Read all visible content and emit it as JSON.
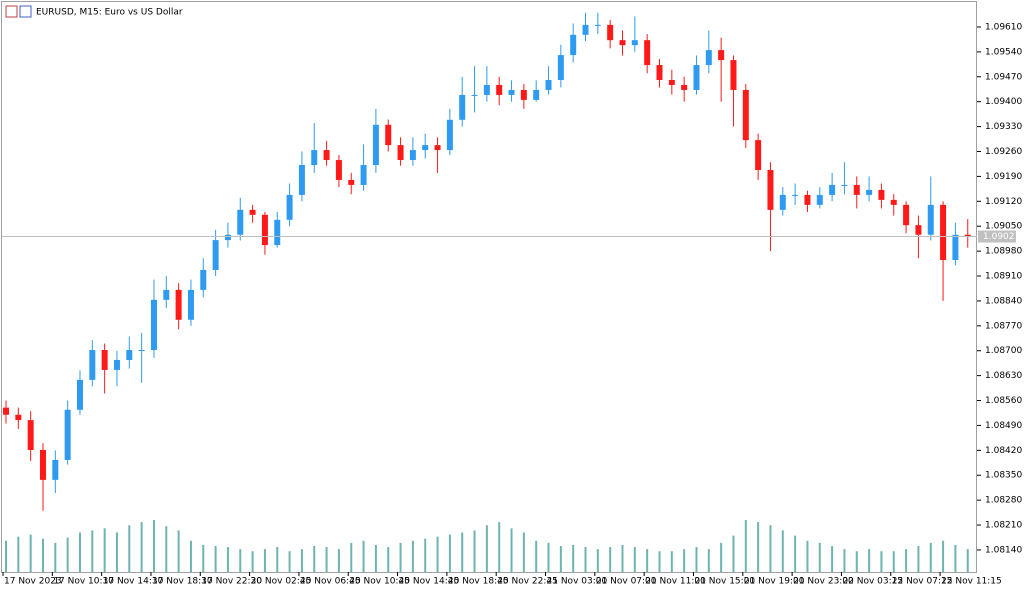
{
  "chart_data": {
    "type": "candlestick",
    "title": "EURUSD, M15:  Euro vs US Dollar",
    "up_color": "#2f9bf0",
    "down_color": "#ff1a1a",
    "volume_color": "#6fb3b0",
    "ylim": [
      1.08078,
      1.09669
    ],
    "yticks": [
      {
        "value": 1.0961,
        "label": "1.09610"
      },
      {
        "value": 1.0954,
        "label": "1.09540"
      },
      {
        "value": 1.0947,
        "label": "1.09470"
      },
      {
        "value": 1.094,
        "label": "1.09400"
      },
      {
        "value": 1.0933,
        "label": "1.09330"
      },
      {
        "value": 1.0926,
        "label": "1.09260"
      },
      {
        "value": 1.0919,
        "label": "1.09190"
      },
      {
        "value": 1.0912,
        "label": "1.09120"
      },
      {
        "value": 1.0905,
        "label": "1.09050"
      },
      {
        "value": 1.0898,
        "label": "1.08980"
      },
      {
        "value": 1.0891,
        "label": "1.08910"
      },
      {
        "value": 1.0884,
        "label": "1.08840"
      },
      {
        "value": 1.0877,
        "label": "1.08770"
      },
      {
        "value": 1.087,
        "label": "1.08700"
      },
      {
        "value": 1.0863,
        "label": "1.08630"
      },
      {
        "value": 1.0856,
        "label": "1.08560"
      },
      {
        "value": 1.0849,
        "label": "1.08490"
      },
      {
        "value": 1.0842,
        "label": "1.08420"
      },
      {
        "value": 1.0835,
        "label": "1.08350"
      },
      {
        "value": 1.0828,
        "label": "1.08280"
      },
      {
        "value": 1.0821,
        "label": "1.08210"
      },
      {
        "value": 1.0814,
        "label": "1.08140"
      }
    ],
    "last_price": 1.09021,
    "categories": [
      "17 Nov 2023",
      null,
      null,
      null,
      "17 Nov 10:30",
      null,
      null,
      null,
      "17 Nov 14:30",
      null,
      null,
      null,
      "17 Nov 18:30",
      null,
      null,
      null,
      "17 Nov 22:30",
      null,
      null,
      null,
      "20 Nov 02:45",
      null,
      null,
      null,
      "20 Nov 06:45",
      null,
      null,
      null,
      "20 Nov 10:45",
      null,
      null,
      null,
      "20 Nov 14:45",
      null,
      null,
      null,
      "20 Nov 18:45",
      null,
      null,
      null,
      "20 Nov 22:45",
      null,
      null,
      null,
      "21 Nov 03:00",
      null,
      null,
      null,
      "21 Nov 07:00",
      null,
      null,
      null,
      "21 Nov 11:00",
      null,
      null,
      null,
      "21 Nov 15:00",
      null,
      null,
      null,
      "21 Nov 19:00",
      null,
      null,
      null,
      "21 Nov 23:00",
      null,
      null,
      null,
      "22 Nov 03:15",
      null,
      null,
      null,
      "22 Nov 07:15",
      null,
      null,
      null,
      "22 Nov 11:15",
      null,
      null
    ],
    "candles": [
      [
        1.0854,
        1.0856,
        1.08495,
        1.0852
      ],
      [
        1.0852,
        1.0854,
        1.0848,
        1.08505
      ],
      [
        1.08505,
        1.0853,
        1.0839,
        1.08421
      ],
      [
        1.08421,
        1.0844,
        1.0825,
        1.08337
      ],
      [
        1.08337,
        1.0842,
        1.083,
        1.08393
      ],
      [
        1.08393,
        1.0856,
        1.0838,
        1.08534
      ],
      [
        1.08534,
        1.08645,
        1.0852,
        1.08618
      ],
      [
        1.08618,
        1.0873,
        1.086,
        1.08702
      ],
      [
        1.08702,
        1.0872,
        1.0858,
        1.08646
      ],
      [
        1.08646,
        1.087,
        1.086,
        1.08674
      ],
      [
        1.08674,
        1.0874,
        1.0865,
        1.08702
      ],
      [
        1.08702,
        1.0875,
        1.0861,
        1.08702
      ],
      [
        1.08702,
        1.089,
        1.0868,
        1.08843
      ],
      [
        1.08843,
        1.0891,
        1.0882,
        1.08871
      ],
      [
        1.08871,
        1.0889,
        1.0876,
        1.08787
      ],
      [
        1.08787,
        1.089,
        1.0877,
        1.08871
      ],
      [
        1.08871,
        1.0896,
        1.0885,
        1.08927
      ],
      [
        1.08927,
        1.0904,
        1.0891,
        1.09011
      ],
      [
        1.09011,
        1.0906,
        1.0899,
        1.09026
      ],
      [
        1.09026,
        1.0913,
        1.0901,
        1.09096
      ],
      [
        1.09096,
        1.0911,
        1.0906,
        1.09082
      ],
      [
        1.09082,
        1.0909,
        1.0897,
        1.08997
      ],
      [
        1.08997,
        1.0909,
        1.0899,
        1.09068
      ],
      [
        1.09068,
        1.0917,
        1.0905,
        1.09138
      ],
      [
        1.09138,
        1.0926,
        1.0912,
        1.09222
      ],
      [
        1.09222,
        1.0934,
        1.092,
        1.09264
      ],
      [
        1.09264,
        1.0929,
        1.0922,
        1.09236
      ],
      [
        1.09236,
        1.0925,
        1.0916,
        1.0918
      ],
      [
        1.0918,
        1.092,
        1.0914,
        1.09166
      ],
      [
        1.09166,
        1.0928,
        1.0915,
        1.09222
      ],
      [
        1.09222,
        1.0938,
        1.092,
        1.09335
      ],
      [
        1.09335,
        1.0935,
        1.0926,
        1.09278
      ],
      [
        1.09278,
        1.093,
        1.0922,
        1.09236
      ],
      [
        1.09236,
        1.093,
        1.0922,
        1.09264
      ],
      [
        1.09264,
        1.0931,
        1.0924,
        1.09278
      ],
      [
        1.09278,
        1.093,
        1.092,
        1.09264
      ],
      [
        1.09264,
        1.0938,
        1.0925,
        1.09349
      ],
      [
        1.09349,
        1.0947,
        1.0933,
        1.09419
      ],
      [
        1.09419,
        1.095,
        1.0937,
        1.09419
      ],
      [
        1.09419,
        1.095,
        1.094,
        1.09447
      ],
      [
        1.09447,
        1.0947,
        1.0939,
        1.09419
      ],
      [
        1.09419,
        1.0946,
        1.094,
        1.09433
      ],
      [
        1.09433,
        1.0945,
        1.0938,
        1.09405
      ],
      [
        1.09405,
        1.0946,
        1.094,
        1.09433
      ],
      [
        1.09433,
        1.095,
        1.0942,
        1.09461
      ],
      [
        1.09461,
        1.0956,
        1.0944,
        1.09531
      ],
      [
        1.09531,
        1.0962,
        1.0951,
        1.09588
      ],
      [
        1.09588,
        1.0965,
        1.0957,
        1.09616
      ],
      [
        1.09616,
        1.0965,
        1.0959,
        1.09616
      ],
      [
        1.09616,
        1.0963,
        1.0955,
        1.09573
      ],
      [
        1.09573,
        1.096,
        1.0953,
        1.09559
      ],
      [
        1.09559,
        1.0964,
        1.0954,
        1.09573
      ],
      [
        1.09573,
        1.0959,
        1.0948,
        1.09503
      ],
      [
        1.09503,
        1.0952,
        1.0944,
        1.09461
      ],
      [
        1.09461,
        1.0949,
        1.0942,
        1.09447
      ],
      [
        1.09447,
        1.0947,
        1.094,
        1.09433
      ],
      [
        1.09433,
        1.0953,
        1.0942,
        1.09503
      ],
      [
        1.09503,
        1.096,
        1.0948,
        1.09545
      ],
      [
        1.09545,
        1.0958,
        1.094,
        1.09517
      ],
      [
        1.09517,
        1.0953,
        1.0933,
        1.09433
      ],
      [
        1.09433,
        1.0945,
        1.0927,
        1.09292
      ],
      [
        1.09292,
        1.0931,
        1.0918,
        1.09208
      ],
      [
        1.09208,
        1.0923,
        1.0898,
        1.09096
      ],
      [
        1.09096,
        1.0916,
        1.0908,
        1.09138
      ],
      [
        1.09138,
        1.0917,
        1.0911,
        1.09138
      ],
      [
        1.09138,
        1.0915,
        1.0909,
        1.0911
      ],
      [
        1.0911,
        1.0916,
        1.091,
        1.09138
      ],
      [
        1.09138,
        1.092,
        1.0912,
        1.09166
      ],
      [
        1.09166,
        1.0923,
        1.0914,
        1.09166
      ],
      [
        1.09166,
        1.0919,
        1.091,
        1.09138
      ],
      [
        1.09138,
        1.0919,
        1.0912,
        1.09152
      ],
      [
        1.09152,
        1.0917,
        1.091,
        1.09124
      ],
      [
        1.09124,
        1.0914,
        1.0908,
        1.0911
      ],
      [
        1.0911,
        1.0912,
        1.0903,
        1.09053
      ],
      [
        1.09053,
        1.0908,
        1.0896,
        1.09026
      ],
      [
        1.09026,
        1.0919,
        1.0901,
        1.0911
      ],
      [
        1.0911,
        1.0912,
        1.0884,
        1.08955
      ],
      [
        1.08955,
        1.0906,
        1.0894,
        1.09026
      ],
      [
        1.09026,
        1.0907,
        1.0899,
        1.09021
      ]
    ],
    "volumes": [
      30,
      34,
      36,
      32,
      28,
      33,
      38,
      40,
      42,
      38,
      45,
      48,
      50,
      44,
      40,
      30,
      26,
      25,
      24,
      22,
      20,
      22,
      24,
      20,
      22,
      25,
      24,
      22,
      28,
      30,
      26,
      24,
      28,
      30,
      32,
      34,
      36,
      38,
      40,
      45,
      48,
      42,
      38,
      30,
      28,
      25,
      26,
      24,
      22,
      24,
      26,
      24,
      22,
      20,
      20,
      22,
      24,
      22,
      28,
      35,
      50,
      48,
      45,
      40,
      35,
      30,
      28,
      25,
      22,
      20,
      22,
      20,
      20,
      22,
      25,
      28,
      30,
      26,
      22
    ]
  }
}
